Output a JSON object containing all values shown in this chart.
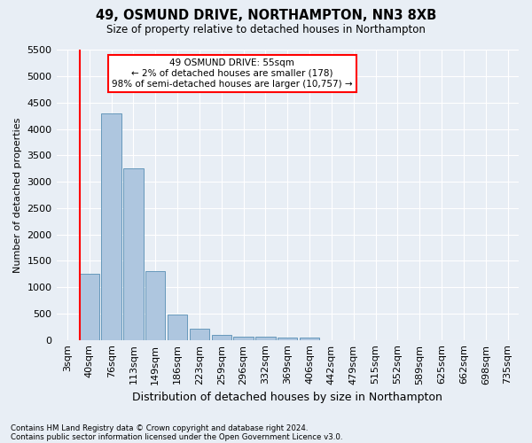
{
  "title": "49, OSMUND DRIVE, NORTHAMPTON, NN3 8XB",
  "subtitle": "Size of property relative to detached houses in Northampton",
  "xlabel": "Distribution of detached houses by size in Northampton",
  "ylabel": "Number of detached properties",
  "footnote1": "Contains HM Land Registry data © Crown copyright and database right 2024.",
  "footnote2": "Contains public sector information licensed under the Open Government Licence v3.0.",
  "annotation_title": "49 OSMUND DRIVE: 55sqm",
  "annotation_line1": "← 2% of detached houses are smaller (178)",
  "annotation_line2": "98% of semi-detached houses are larger (10,757) →",
  "bar_categories": [
    "3sqm",
    "40sqm",
    "76sqm",
    "113sqm",
    "149sqm",
    "186sqm",
    "223sqm",
    "259sqm",
    "296sqm",
    "332sqm",
    "369sqm",
    "406sqm",
    "442sqm",
    "479sqm",
    "515sqm",
    "552sqm",
    "589sqm",
    "625sqm",
    "662sqm",
    "698sqm",
    "735sqm"
  ],
  "bar_values": [
    0,
    1250,
    4300,
    3250,
    1300,
    480,
    210,
    100,
    60,
    55,
    50,
    40,
    0,
    0,
    0,
    0,
    0,
    0,
    0,
    0,
    0
  ],
  "bar_color": "#aec6df",
  "bar_edge_color": "#6699bb",
  "vline_color": "red",
  "annotation_box_color": "white",
  "annotation_box_edge_color": "red",
  "bg_color": "#e8eef5",
  "grid_color": "#ffffff",
  "ylim": [
    0,
    5500
  ],
  "yticks": [
    0,
    500,
    1000,
    1500,
    2000,
    2500,
    3000,
    3500,
    4000,
    4500,
    5000,
    5500
  ]
}
